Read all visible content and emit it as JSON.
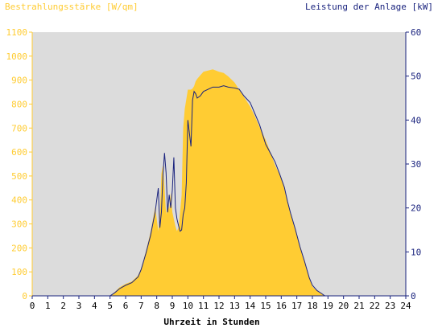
{
  "chart_data": {
    "type": "area",
    "y_left_label": "Bestrahlungsstärke [W/qm]",
    "y_right_label": "Leistung der Anlage [kW]",
    "xlabel": "Uhrzeit in Stunden",
    "x_ticks": [
      "0",
      "1",
      "2",
      "3",
      "4",
      "5",
      "6",
      "7",
      "8",
      "9",
      "10",
      "11",
      "12",
      "13",
      "14",
      "15",
      "16",
      "17",
      "18",
      "19",
      "20",
      "21",
      "22",
      "23",
      "24"
    ],
    "y_left_ticks": [
      "0",
      "100",
      "200",
      "300",
      "400",
      "500",
      "600",
      "700",
      "800",
      "900",
      "1000",
      "1100"
    ],
    "y_right_ticks": [
      "0",
      "10",
      "20",
      "30",
      "40",
      "50",
      "60"
    ],
    "xlim": [
      0,
      24
    ],
    "ylim_left": [
      0,
      1100
    ],
    "ylim_right": [
      0,
      60
    ],
    "grid": false,
    "colors": {
      "plot_bg": "#dcdcdc",
      "irradiance": "#ffcc33",
      "power": "#1a237e",
      "left_axis_text": "#ffcc33",
      "right_axis_text": "#1a237e"
    },
    "series": [
      {
        "name": "Bestrahlungsstärke [W/qm]",
        "axis": "left",
        "style": "area",
        "x": [
          0,
          5,
          5.3,
          5.6,
          6,
          6.4,
          6.8,
          7,
          7.3,
          7.6,
          7.9,
          8.1,
          8.2,
          8.3,
          8.4,
          8.5,
          8.6,
          8.7,
          8.8,
          8.9,
          9,
          9.1,
          9.2,
          9.3,
          9.4,
          9.5,
          9.6,
          9.7,
          9.8,
          9.9,
          10,
          10.2,
          10.3,
          10.4,
          10.5,
          10.6,
          10.8,
          11,
          11.3,
          11.6,
          12,
          12.3,
          12.6,
          13,
          13.3,
          13.6,
          14,
          14.3,
          14.6,
          15,
          15.3,
          15.6,
          15.9,
          16.2,
          16.4,
          16.6,
          16.9,
          17.2,
          17.5,
          17.8,
          18,
          18.3,
          18.6,
          18.8,
          19,
          19.3,
          19.6,
          19.8,
          20,
          24
        ],
        "y": [
          0,
          0,
          15,
          35,
          50,
          60,
          85,
          115,
          185,
          265,
          370,
          270,
          330,
          510,
          545,
          450,
          340,
          390,
          360,
          430,
          350,
          320,
          290,
          270,
          285,
          350,
          420,
          700,
          780,
          820,
          860,
          860,
          865,
          875,
          895,
          905,
          920,
          935,
          940,
          945,
          935,
          930,
          915,
          890,
          860,
          830,
          790,
          750,
          705,
          650,
          600,
          545,
          505,
          455,
          395,
          345,
          280,
          205,
          145,
          75,
          38,
          20,
          8,
          0,
          0,
          0,
          0,
          0,
          0,
          0
        ]
      },
      {
        "name": "Leistung der Anlage [kW]",
        "axis": "right",
        "style": "line",
        "x": [
          0,
          5,
          5.3,
          5.6,
          6,
          6.4,
          6.8,
          7,
          7.3,
          7.6,
          7.9,
          8.1,
          8.2,
          8.3,
          8.4,
          8.5,
          8.6,
          8.7,
          8.8,
          8.9,
          9,
          9.1,
          9.2,
          9.3,
          9.4,
          9.5,
          9.6,
          9.7,
          9.8,
          9.9,
          10,
          10.2,
          10.3,
          10.4,
          10.5,
          10.6,
          10.8,
          11,
          11.3,
          11.6,
          12,
          12.3,
          12.6,
          13,
          13.3,
          13.6,
          14,
          14.3,
          14.6,
          15,
          15.3,
          15.6,
          15.9,
          16.2,
          16.4,
          16.6,
          16.9,
          17.2,
          17.5,
          17.8,
          18,
          18.3,
          18.6,
          18.8,
          19,
          19.3,
          19.6,
          19.8,
          20,
          24
        ],
        "y": [
          0,
          0,
          0.7,
          1.6,
          2.4,
          3.0,
          4.3,
          6.0,
          9.6,
          13.7,
          19.1,
          24.5,
          15.5,
          19,
          27.5,
          32.5,
          28,
          19,
          23,
          20,
          24,
          31.5,
          20,
          17.5,
          16,
          14.7,
          15,
          18.5,
          20,
          25.7,
          40,
          34,
          44.5,
          46.5,
          46,
          45,
          45.5,
          46.5,
          47,
          47.5,
          47.5,
          47.8,
          47.5,
          47.3,
          47,
          45.5,
          44,
          41.5,
          39,
          34.5,
          32.5,
          30.5,
          27.7,
          24.7,
          21.5,
          18.8,
          15.2,
          11.2,
          7.8,
          4.1,
          2.4,
          1.2,
          0.5,
          0,
          0,
          0,
          0,
          0,
          0,
          0
        ]
      }
    ]
  }
}
